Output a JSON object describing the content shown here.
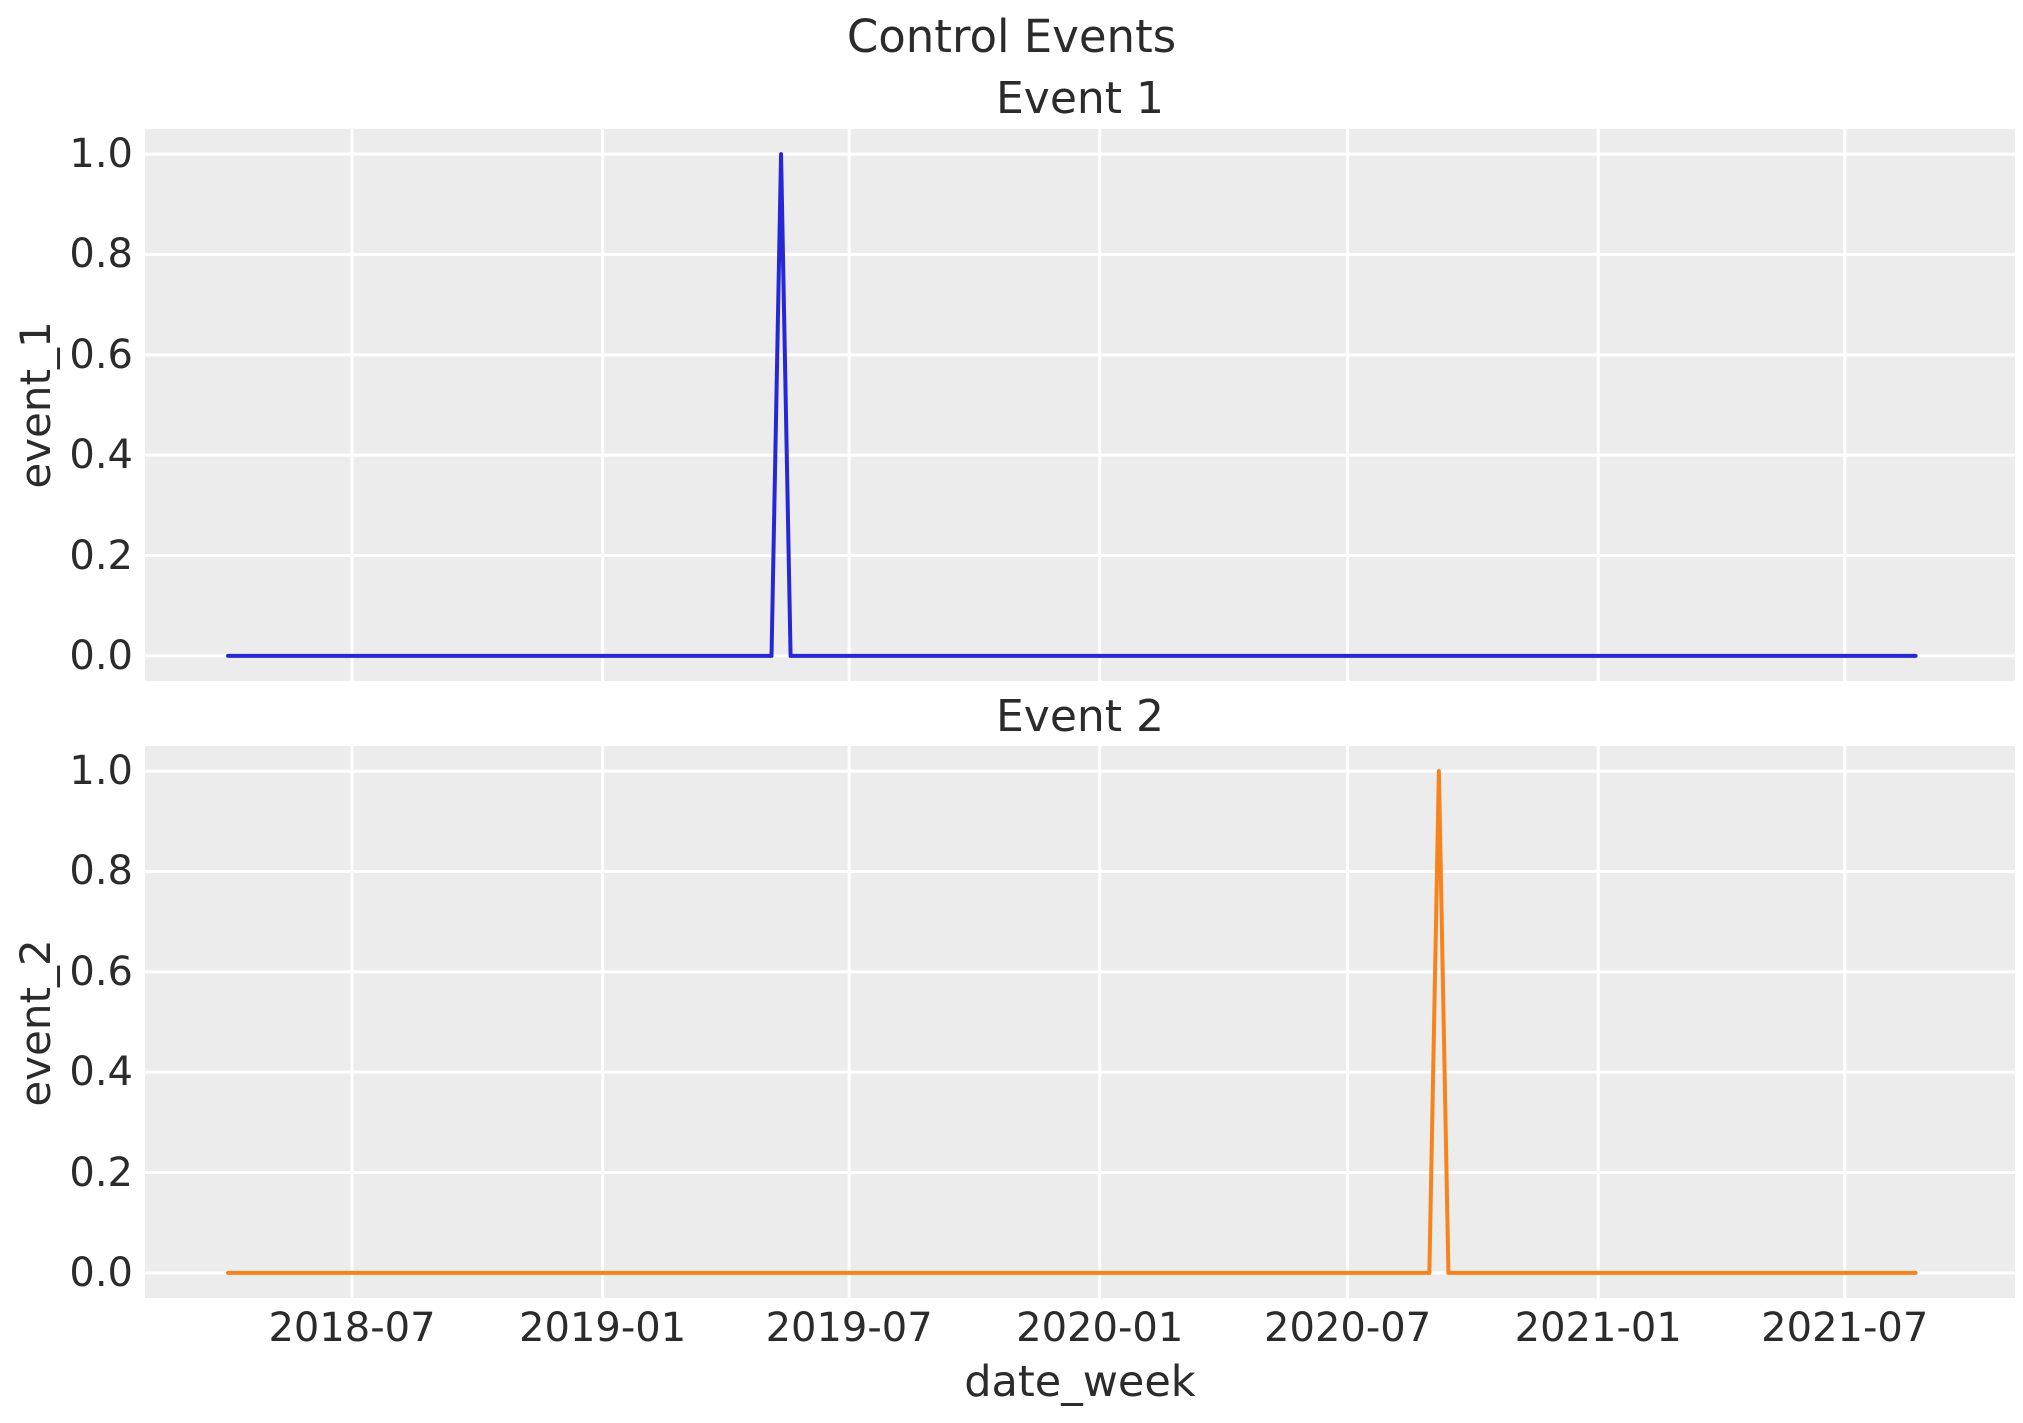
{
  "figure": {
    "suptitle": "Control Events",
    "background_color": "#ffffff",
    "plot_background_color": "#ececec",
    "grid_color": "#ffffff",
    "text_color": "#2b2b2b"
  },
  "x_axis": {
    "label": "date_week",
    "ticks": [
      {
        "label": "2018-07",
        "day": 91
      },
      {
        "label": "2019-01",
        "day": 275
      },
      {
        "label": "2019-07",
        "day": 456
      },
      {
        "label": "2020-01",
        "day": 640
      },
      {
        "label": "2020-07",
        "day": 822
      },
      {
        "label": "2021-01",
        "day": 1006
      },
      {
        "label": "2021-07",
        "day": 1187
      }
    ]
  },
  "chart_data": [
    {
      "type": "line",
      "title": "Event 1",
      "ylabel": "event_1",
      "series_name": "event_1",
      "series_color": "#2727d8",
      "line_width": 4,
      "grid": true,
      "x_start_date": "2018-04-01",
      "x_end_date": "2021-08-22",
      "frequency": "weekly",
      "n_points": 178,
      "baseline_value": 0.0,
      "spike": {
        "date": "2019-05-12",
        "week_index": 58,
        "value": 1.0
      },
      "xlim_days": [
        -61,
        1312
      ],
      "ylim": [
        -0.05,
        1.05
      ],
      "yticks": [
        {
          "label": "1.0",
          "value": 1.0
        },
        {
          "label": "0.8",
          "value": 0.8
        },
        {
          "label": "0.6",
          "value": 0.6
        },
        {
          "label": "0.4",
          "value": 0.4
        },
        {
          "label": "0.2",
          "value": 0.2
        },
        {
          "label": "0.0",
          "value": 0.0
        }
      ]
    },
    {
      "type": "line",
      "title": "Event 2",
      "ylabel": "event_2",
      "series_name": "event_2",
      "series_color": "#f8821c",
      "line_width": 4,
      "grid": true,
      "x_start_date": "2018-04-01",
      "x_end_date": "2021-08-22",
      "frequency": "weekly",
      "n_points": 178,
      "baseline_value": 0.0,
      "spike": {
        "date": "2020-09-06",
        "week_index": 127,
        "value": 1.0
      },
      "xlim_days": [
        -61,
        1312
      ],
      "ylim": [
        -0.05,
        1.05
      ],
      "yticks": [
        {
          "label": "1.0",
          "value": 1.0
        },
        {
          "label": "0.8",
          "value": 0.8
        },
        {
          "label": "0.6",
          "value": 0.6
        },
        {
          "label": "0.4",
          "value": 0.4
        },
        {
          "label": "0.2",
          "value": 0.2
        },
        {
          "label": "0.0",
          "value": 0.0
        }
      ]
    }
  ]
}
